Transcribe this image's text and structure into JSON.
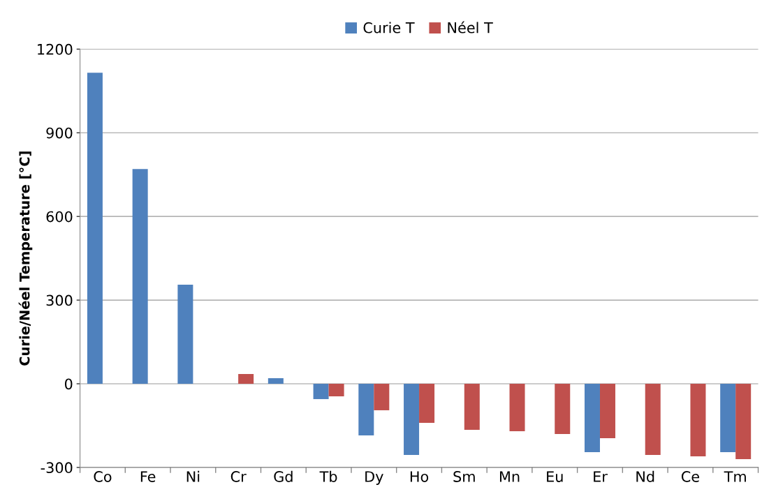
{
  "chart_data": {
    "type": "bar",
    "ylabel": "Curie/Néel Temperature [°C]",
    "categories": [
      "Co",
      "Fe",
      "Ni",
      "Cr",
      "Gd",
      "Tb",
      "Dy",
      "Ho",
      "Sm",
      "Mn",
      "Eu",
      "Er",
      "Nd",
      "Ce",
      "Tm"
    ],
    "series": [
      {
        "name": "Curie T",
        "color": "#4f81bd",
        "values": [
          1115,
          770,
          355,
          null,
          20,
          -55,
          -185,
          -255,
          null,
          null,
          null,
          -245,
          null,
          null,
          -245
        ]
      },
      {
        "name": "Néel T",
        "color": "#c0504d",
        "values": [
          null,
          null,
          null,
          35,
          null,
          -45,
          -95,
          -140,
          -165,
          -170,
          -180,
          -195,
          -255,
          -260,
          -270
        ]
      }
    ],
    "ylim": [
      -300,
      1200
    ],
    "yticks": [
      -300,
      0,
      300,
      600,
      900,
      1200
    ],
    "grid": "y",
    "legend": "top"
  }
}
